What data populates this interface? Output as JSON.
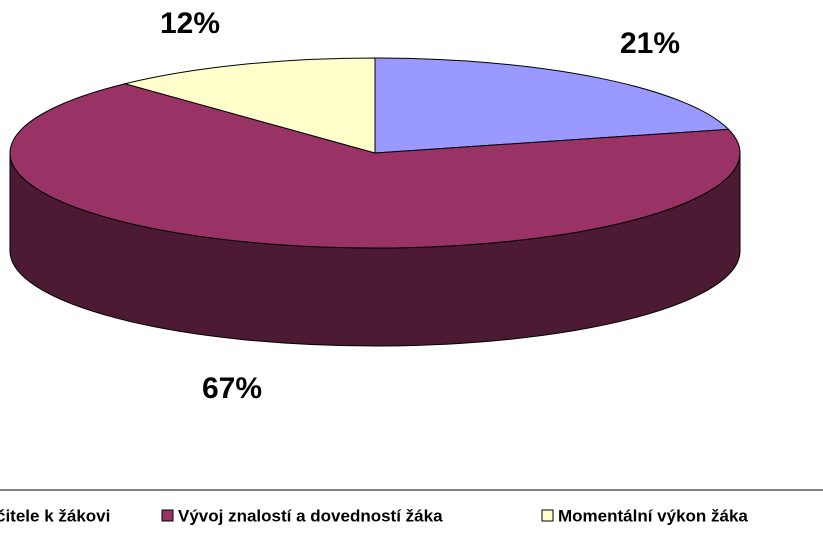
{
  "chart_data": {
    "type": "pie",
    "categories": [
      "čitele k žákovi",
      "Vývoj znalostí a dovedností žáka",
      "Momentální výkon žáka"
    ],
    "values": [
      21,
      67,
      12
    ],
    "value_labels": [
      "21%",
      "67%",
      "12%"
    ],
    "colors": [
      "#9999ff",
      "#993366",
      "#ffffcc"
    ]
  }
}
